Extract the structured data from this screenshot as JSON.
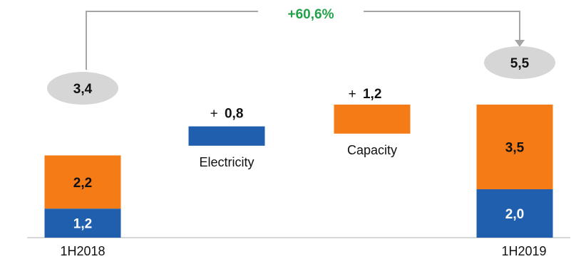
{
  "chart_data": {
    "type": "bar",
    "subtype": "waterfall",
    "categories": [
      "1H2018",
      "",
      "",
      "1H2019"
    ],
    "series": [
      {
        "values": [
          1.2,
          0.8,
          null,
          2.0
        ]
      },
      {
        "values": [
          2.2,
          null,
          1.2,
          3.5
        ]
      }
    ],
    "steps": [
      {
        "label": "Electricity",
        "sign": "+",
        "value_text": "0,8",
        "value": 0.8
      },
      {
        "label": "Capacity",
        "sign": "+",
        "value_text": "1,2",
        "value": 1.2
      }
    ],
    "bar_labels": {
      "start_blue": "1,2",
      "start_orange": "2,2",
      "end_blue": "2,0",
      "end_orange": "3,5"
    },
    "totals": {
      "start": "3,4",
      "end": "5,5"
    },
    "growth_label": "+60,6%",
    "colors": {
      "blue": "#1f5fae",
      "orange": "#f47b16",
      "growth": "#22a04a",
      "total_bubble": "#d6d6d6",
      "connector": "#a6a6a6",
      "baseline": "#bfbfbf"
    },
    "xlabel": "",
    "ylabel": "",
    "legend": "none"
  }
}
